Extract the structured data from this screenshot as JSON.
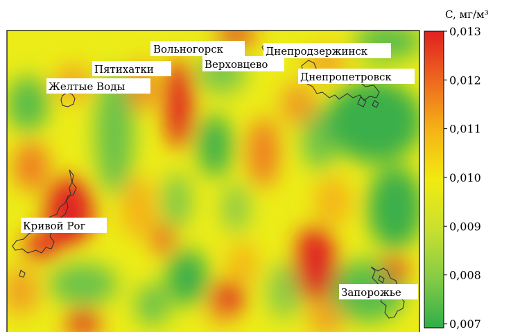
{
  "colorbar": {
    "unit_label": "C, мг/м³",
    "ticks": [
      "0,013",
      "0,012",
      "0,011",
      "0,010",
      "0,009",
      "0,008",
      "0,007"
    ],
    "colors": [
      "#e02020",
      "#ee6a1f",
      "#f5b216",
      "#f2ea10",
      "#c8e030",
      "#86cc45",
      "#2fae4a"
    ],
    "range": [
      0.007,
      0.013
    ]
  },
  "cities": [
    {
      "name": "Вольногорск"
    },
    {
      "name": "Днепродзержинск"
    },
    {
      "name": "Пятихатки"
    },
    {
      "name": "Верховцево"
    },
    {
      "name": "Желтые Воды"
    },
    {
      "name": "Днепропетровск"
    },
    {
      "name": "Кривой Рог"
    },
    {
      "name": "Запорожье"
    }
  ],
  "map": {
    "background_color": "#ecec18",
    "city_outline_color": "#333333"
  }
}
